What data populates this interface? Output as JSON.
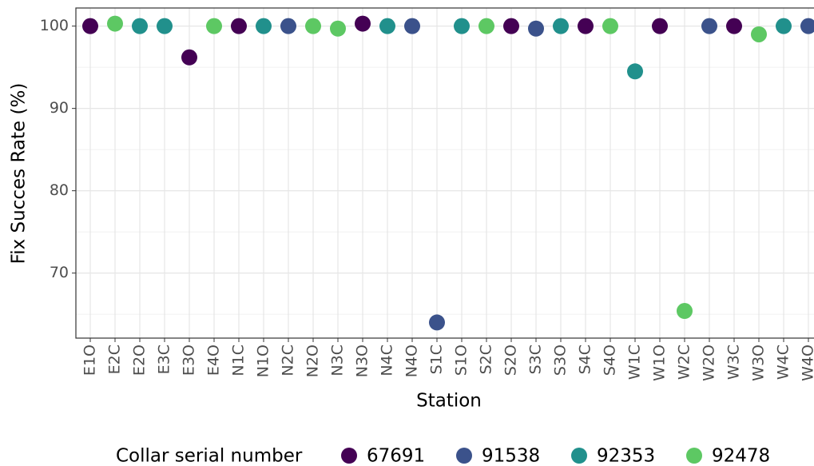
{
  "chart_data": {
    "type": "scatter",
    "x_label": "Station",
    "y_label": "Fix Succes Rate (%)",
    "legend_title": "Collar serial number",
    "legend_position": "bottom",
    "categories": [
      "E1O",
      "E2C",
      "E2O",
      "E3C",
      "E3O",
      "E4O",
      "N1C",
      "N1O",
      "N2C",
      "N2O",
      "N3C",
      "N3O",
      "N4C",
      "N4O",
      "S1C",
      "S1O",
      "S2C",
      "S2O",
      "S3C",
      "S3O",
      "S4C",
      "S4O",
      "W1C",
      "W1O",
      "W2C",
      "W2O",
      "W3C",
      "W3O",
      "W4C",
      "W4O"
    ],
    "series": [
      {
        "name": "67691",
        "color": "#440154",
        "values": [
          100,
          null,
          null,
          null,
          96.2,
          null,
          100,
          null,
          null,
          null,
          null,
          100.3,
          null,
          null,
          null,
          null,
          null,
          100,
          null,
          null,
          100,
          null,
          null,
          100,
          null,
          null,
          100,
          null,
          null,
          null
        ]
      },
      {
        "name": "91538",
        "color": "#3b528b",
        "values": [
          null,
          null,
          null,
          null,
          null,
          null,
          null,
          null,
          100,
          null,
          null,
          null,
          null,
          100,
          64,
          null,
          null,
          null,
          99.7,
          null,
          null,
          null,
          null,
          null,
          null,
          100,
          null,
          null,
          null,
          100
        ]
      },
      {
        "name": "92353",
        "color": "#21908c",
        "values": [
          null,
          null,
          100,
          100,
          null,
          null,
          null,
          100,
          null,
          null,
          null,
          null,
          100,
          null,
          null,
          100,
          null,
          null,
          null,
          100,
          null,
          null,
          94.5,
          null,
          null,
          null,
          null,
          null,
          100,
          null
        ]
      },
      {
        "name": "92478",
        "color": "#5dc863",
        "values": [
          null,
          100.3,
          null,
          null,
          null,
          100,
          null,
          null,
          null,
          100,
          99.7,
          null,
          null,
          null,
          null,
          null,
          100,
          null,
          null,
          null,
          null,
          100,
          null,
          null,
          65.4,
          null,
          null,
          99,
          null,
          null
        ]
      }
    ],
    "ylim": [
      62.1,
      102.2
    ],
    "yticks": [
      70,
      80,
      90,
      100
    ],
    "minor_yticks": [
      65,
      75,
      85,
      95
    ],
    "grid": true
  }
}
